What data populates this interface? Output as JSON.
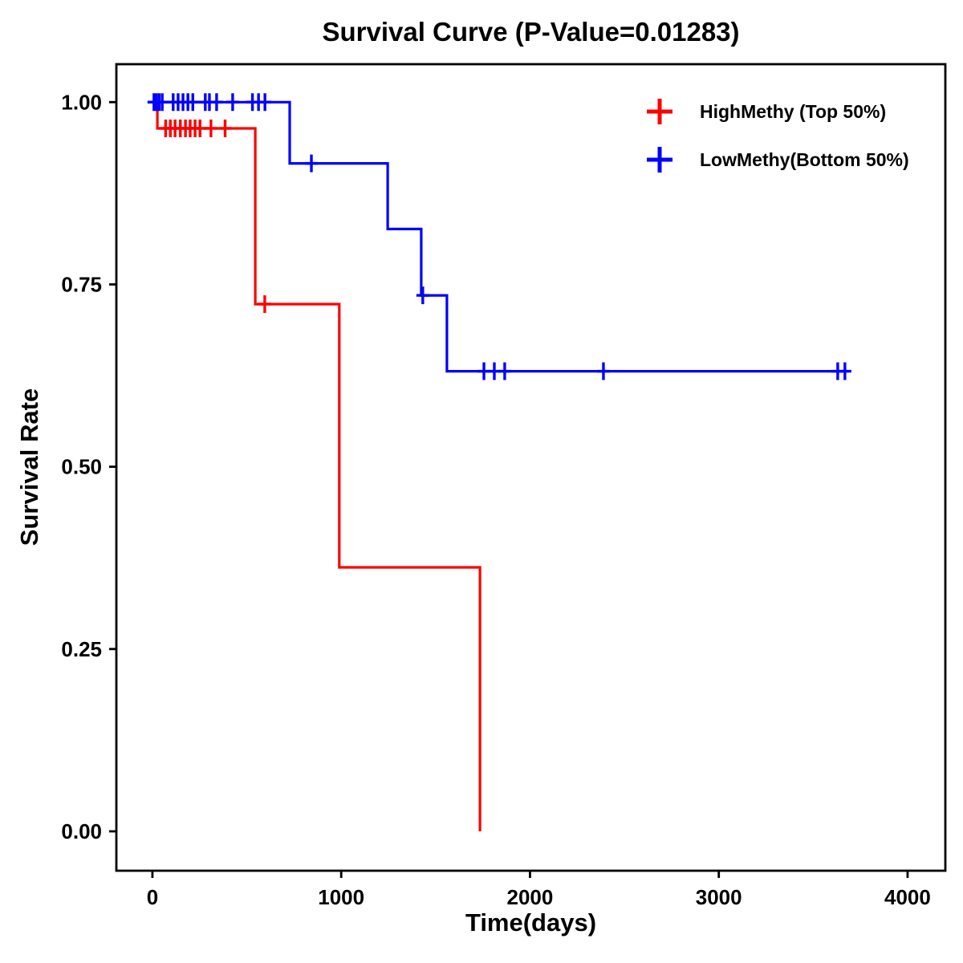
{
  "title": "Survival Curve (P-Value=0.01283)",
  "chart_data": {
    "type": "line",
    "subtype": "kaplan_meier_step",
    "title": "Survival Curve (P-Value=0.01283)",
    "xlabel": "Time(days)",
    "ylabel": "Survival Rate",
    "xlim": [
      -191,
      4200
    ],
    "ylim": [
      -0.054,
      1.052
    ],
    "grid": false,
    "legend_position": "top-right-inside",
    "x_ticks": [
      {
        "value": 0,
        "label": "0"
      },
      {
        "value": 1000,
        "label": "1000"
      },
      {
        "value": 2000,
        "label": "2000"
      },
      {
        "value": 3000,
        "label": "3000"
      },
      {
        "value": 4000,
        "label": "4000"
      }
    ],
    "y_ticks": [
      {
        "value": 0.0,
        "label": "0.00"
      },
      {
        "value": 0.25,
        "label": "0.25"
      },
      {
        "value": 0.5,
        "label": "0.50"
      },
      {
        "value": 0.75,
        "label": "0.75"
      },
      {
        "value": 1.0,
        "label": "1.00"
      }
    ],
    "series": [
      {
        "id": "highmethy",
        "name": "HighMethy (Top 50%)",
        "color": "#FF0000",
        "steps": [
          [
            0,
            1.0
          ],
          [
            26,
            0.964
          ],
          [
            545,
            0.723
          ],
          [
            990,
            0.362
          ],
          [
            1735,
            0.0
          ]
        ],
        "end_time": 1735,
        "censored": [
          [
            70,
            0.964
          ],
          [
            95,
            0.964
          ],
          [
            120,
            0.964
          ],
          [
            148,
            0.964
          ],
          [
            175,
            0.964
          ],
          [
            200,
            0.964
          ],
          [
            226,
            0.964
          ],
          [
            252,
            0.964
          ],
          [
            310,
            0.964
          ],
          [
            385,
            0.964
          ],
          [
            595,
            0.723
          ]
        ]
      },
      {
        "id": "lowmethy",
        "name": "LowMethy(Bottom 50%)",
        "color": "#0000FF",
        "steps": [
          [
            0,
            1.0
          ],
          [
            727,
            0.916
          ],
          [
            1246,
            0.826
          ],
          [
            1424,
            0.735
          ],
          [
            1560,
            0.631
          ]
        ],
        "end_time": 3690,
        "censored": [
          [
            8,
            1.0
          ],
          [
            22,
            1.0
          ],
          [
            36,
            1.0
          ],
          [
            52,
            1.0
          ],
          [
            110,
            1.0
          ],
          [
            136,
            1.0
          ],
          [
            162,
            1.0
          ],
          [
            188,
            1.0
          ],
          [
            214,
            1.0
          ],
          [
            280,
            1.0
          ],
          [
            302,
            1.0
          ],
          [
            340,
            1.0
          ],
          [
            425,
            1.0
          ],
          [
            530,
            1.0
          ],
          [
            562,
            1.0
          ],
          [
            596,
            1.0
          ],
          [
            842,
            0.916
          ],
          [
            1432,
            0.735
          ],
          [
            1756,
            0.631
          ],
          [
            1811,
            0.631
          ],
          [
            1866,
            0.631
          ],
          [
            2389,
            0.631
          ],
          [
            3630,
            0.631
          ],
          [
            3668,
            0.631
          ]
        ]
      }
    ]
  }
}
